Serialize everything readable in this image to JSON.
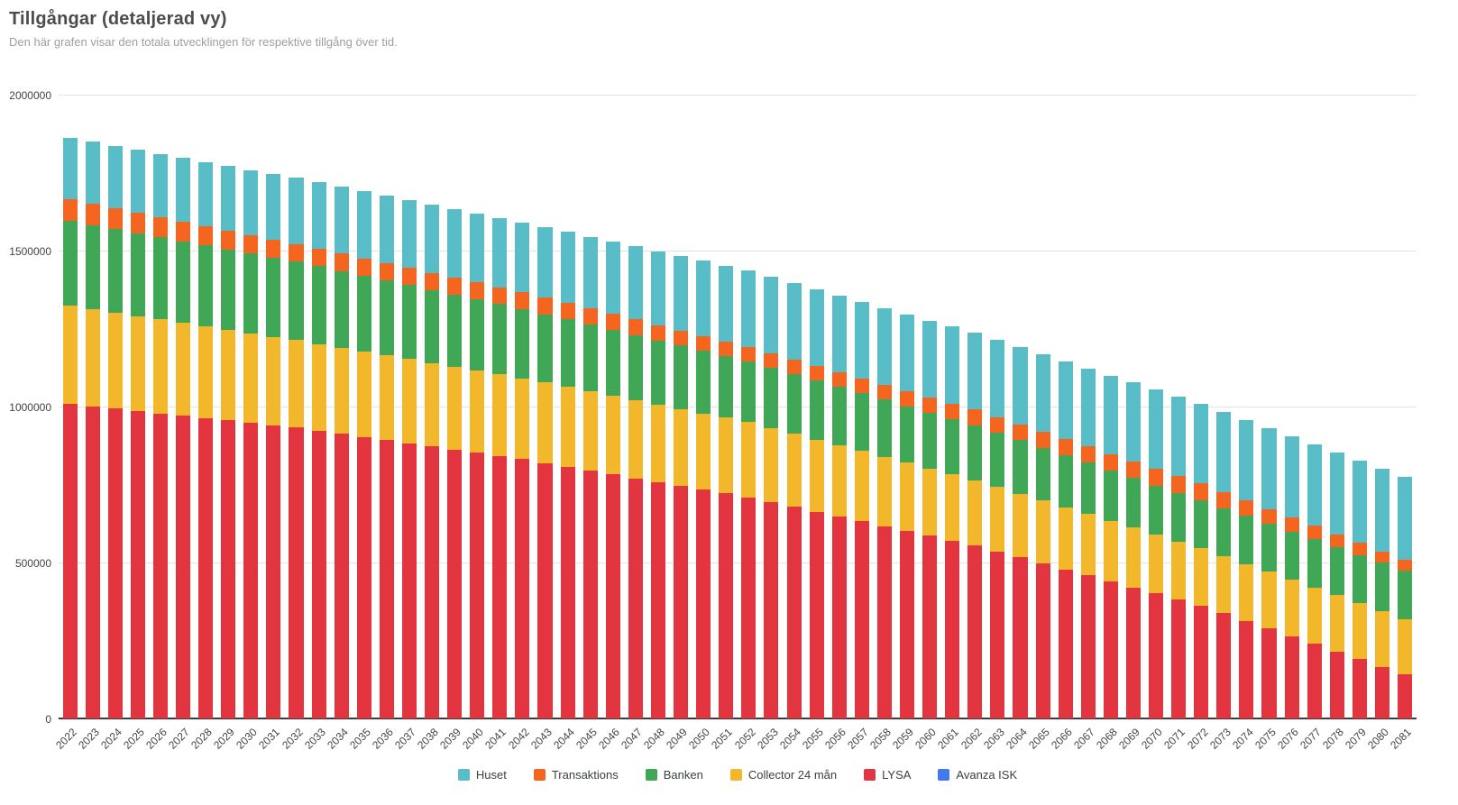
{
  "header": {
    "title": "Tillgångar (detaljerad vy)",
    "subtitle": "Den här grafen visar den totala utvecklingen för respektive tillgång över tid."
  },
  "colors": {
    "huset": "#58bdc6",
    "transaktions": "#f4661f",
    "banken": "#3fa756",
    "collector": "#f3b72b",
    "lysa": "#e2353f",
    "avanza": "#4379ee",
    "gridline": "#e3e3e3",
    "baseline": "#3c3c3c"
  },
  "chart_data": {
    "type": "bar",
    "stacked": true,
    "title": "Tillgångar (detaljerad vy)",
    "subtitle": "Den här grafen visar den totala utvecklingen för respektive tillgång över tid.",
    "xlabel": "",
    "ylabel": "",
    "ylim": [
      0,
      2000000
    ],
    "grid": true,
    "legend_position": "bottom-center",
    "y_ticks": [
      "0",
      "500000",
      "1000000",
      "1500000",
      "2000000"
    ],
    "categories": [
      "2022",
      "2023",
      "2024",
      "2025",
      "2026",
      "2027",
      "2028",
      "2029",
      "2030",
      "2031",
      "2032",
      "2033",
      "2034",
      "2035",
      "2036",
      "2037",
      "2038",
      "2039",
      "2040",
      "2041",
      "2042",
      "2043",
      "2044",
      "2045",
      "2046",
      "2047",
      "2048",
      "2049",
      "2050",
      "2051",
      "2052",
      "2053",
      "2054",
      "2055",
      "2056",
      "2057",
      "2058",
      "2059",
      "2060",
      "2061",
      "2062",
      "2063",
      "2064",
      "2065",
      "2066",
      "2067",
      "2068",
      "2069",
      "2070",
      "2071",
      "2072",
      "2073",
      "2074",
      "2075",
      "2076",
      "2077",
      "2078",
      "2079",
      "2080",
      "2081"
    ],
    "stack_order_bottom_to_top": [
      "Avanza ISK",
      "LYSA",
      "Collector 24 mån",
      "Banken",
      "Transaktions",
      "Huset"
    ],
    "series": [
      {
        "name": "Huset",
        "color_key": "huset",
        "values": [
          196000,
          197600,
          199200,
          200800,
          202400,
          204000,
          205600,
          207200,
          208800,
          210400,
          212000,
          213200,
          214400,
          215600,
          216800,
          218000,
          219200,
          220400,
          221600,
          222800,
          224000,
          226100,
          228200,
          230300,
          232400,
          234500,
          236600,
          238700,
          240800,
          242900,
          245000,
          245100,
          245200,
          245300,
          245400,
          245500,
          245600,
          245700,
          245800,
          245900,
          246000,
          247000,
          248000,
          249000,
          250000,
          251000,
          252000,
          253000,
          254000,
          255000,
          256000,
          257000,
          258000,
          259000,
          260000,
          261000,
          262000,
          263000,
          264000,
          265000
        ]
      },
      {
        "name": "Transaktions",
        "color_key": "transaktions",
        "values": [
          71000,
          69500,
          68000,
          66500,
          65000,
          63500,
          62000,
          60500,
          59000,
          57500,
          56000,
          55800,
          55600,
          55400,
          55200,
          55000,
          54800,
          54600,
          54400,
          54200,
          54000,
          53200,
          52400,
          51600,
          50800,
          50000,
          49200,
          48400,
          47600,
          46800,
          46000,
          46400,
          46800,
          47200,
          47600,
          48000,
          48400,
          48800,
          49200,
          49600,
          50000,
          50400,
          50800,
          51200,
          51600,
          52000,
          52400,
          52800,
          53200,
          53600,
          54000,
          51900,
          49800,
          47700,
          45600,
          43400,
          41300,
          39200,
          37100,
          35000
        ]
      },
      {
        "name": "Banken",
        "color_key": "banken",
        "values": [
          272000,
          270000,
          268000,
          266000,
          264000,
          262000,
          260000,
          258000,
          256000,
          254000,
          252000,
          249000,
          246000,
          243000,
          240000,
          237000,
          234000,
          231000,
          228000,
          225000,
          222000,
          219300,
          216600,
          213900,
          211200,
          208500,
          205800,
          203100,
          200400,
          197700,
          195000,
          193100,
          191200,
          189300,
          187400,
          185500,
          183600,
          181700,
          179800,
          177900,
          176000,
          173700,
          171400,
          169100,
          166800,
          164500,
          162200,
          159900,
          157600,
          155300,
          153000,
          153200,
          153400,
          153700,
          153900,
          154100,
          154300,
          154600,
          154800,
          155000
        ]
      },
      {
        "name": "Collector 24 mån",
        "color_key": "collector",
        "values": [
          315000,
          311500,
          308000,
          304500,
          301000,
          297500,
          294000,
          290500,
          287000,
          283500,
          280000,
          278000,
          276000,
          274000,
          272000,
          270000,
          268000,
          266000,
          264000,
          262000,
          260000,
          258100,
          256200,
          254300,
          252400,
          250500,
          248600,
          246700,
          244800,
          242900,
          241000,
          237800,
          234600,
          231400,
          228200,
          225000,
          221800,
          218600,
          215400,
          212200,
          209000,
          206500,
          204000,
          201500,
          199000,
          196500,
          194000,
          191500,
          189000,
          186500,
          184000,
          183300,
          182700,
          182000,
          181300,
          180700,
          180000,
          179300,
          178700,
          178000
        ]
      },
      {
        "name": "LYSA",
        "color_key": "lysa",
        "values": [
          1008000,
          1000500,
          993000,
          985500,
          978000,
          970500,
          963000,
          955500,
          948000,
          940500,
          933000,
          922800,
          912600,
          902400,
          892200,
          882000,
          871800,
          861600,
          851400,
          841200,
          831000,
          818800,
          806600,
          794400,
          782200,
          770000,
          757800,
          745600,
          733400,
          721200,
          709000,
          693600,
          678200,
          662800,
          647400,
          632000,
          616600,
          601200,
          585800,
          570400,
          555000,
          535700,
          516400,
          497100,
          477800,
          458500,
          439200,
          419900,
          400600,
          381300,
          362000,
          337400,
          312900,
          288300,
          263800,
          239200,
          214700,
          190100,
          165600,
          141000
        ]
      },
      {
        "name": "Avanza ISK",
        "color_key": "avanza",
        "values": [
          0,
          0,
          0,
          0,
          0,
          0,
          0,
          0,
          0,
          0,
          0,
          0,
          0,
          0,
          0,
          0,
          0,
          0,
          0,
          0,
          0,
          0,
          0,
          0,
          0,
          0,
          0,
          0,
          0,
          0,
          0,
          0,
          0,
          0,
          0,
          0,
          0,
          0,
          0,
          0,
          0,
          0,
          0,
          0,
          0,
          0,
          0,
          0,
          0,
          0,
          0,
          0,
          0,
          0,
          0,
          0,
          0,
          0,
          0,
          0
        ]
      }
    ]
  }
}
